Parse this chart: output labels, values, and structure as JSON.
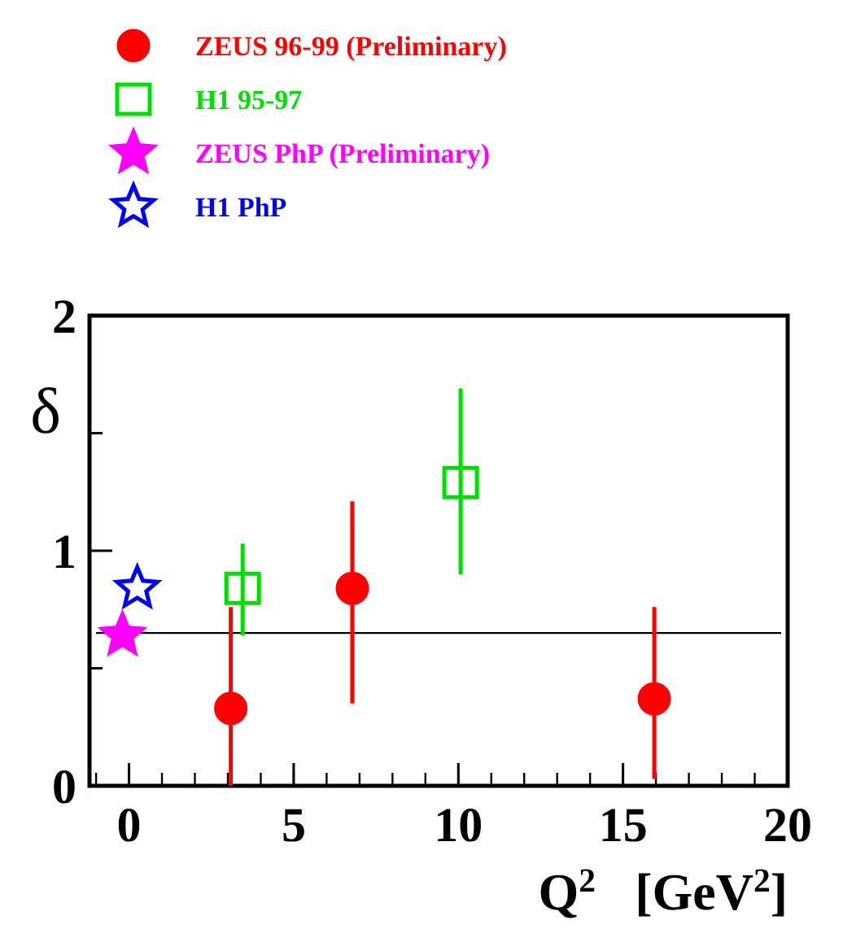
{
  "chart_data": {
    "type": "scatter",
    "xlabel": "Q$^{2}$   [GeV$^{2}$]",
    "ylabel": "δ",
    "xlim": [
      -1.2,
      20
    ],
    "xticks": [
      0,
      5,
      10,
      15,
      20
    ],
    "ylim": [
      0,
      2
    ],
    "yticks": [
      0,
      {
        "value": 0.5,
        "label": null
      },
      1,
      {
        "value": 1.5,
        "label": null
      },
      2
    ],
    "legend": "top",
    "grid": false,
    "series": [
      {
        "name": "ZEUS 96-99 (Preliminary)",
        "color": "#ff0000",
        "marker": "circle",
        "x": [
          3.09,
          6.78,
          15.95
        ],
        "values": [
          0.33,
          0.84,
          0.37
        ],
        "errors": [
          [
            0,
            0.76
          ],
          [
            0.35,
            1.21
          ],
          [
            0.03,
            0.76
          ]
        ]
      },
      {
        "name": "H1 95-97",
        "color": "#00dd00",
        "marker": "square",
        "x": [
          3.45,
          10.07
        ],
        "values": [
          0.84,
          1.29
        ],
        "errors": [
          [
            0.64,
            1.03
          ],
          [
            0.9,
            1.69
          ]
        ]
      },
      {
        "name": "ZEUS PhP (Preliminary)",
        "color": "#ff00ff",
        "marker": "star",
        "x": [
          -0.2
        ],
        "values": [
          0.64
        ]
      },
      {
        "name": "H1 PhP",
        "color": "#0000ff",
        "marker": "star",
        "x": [
          0.25
        ],
        "values": [
          0.84
        ]
      }
    ],
    "ref_lines": [
      {
        "axis": "y",
        "value": 0.65,
        "color": "#000000"
      }
    ]
  }
}
